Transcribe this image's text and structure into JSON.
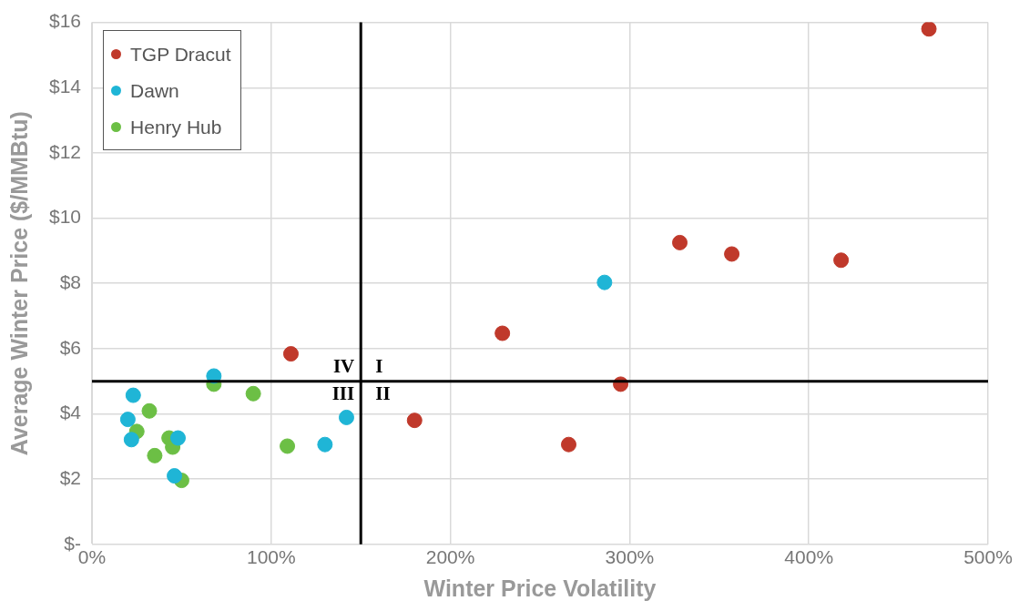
{
  "chart_data": {
    "type": "scatter",
    "xlabel": "Winter Price Volatility",
    "ylabel": "Average Winter Price ($/MMBtu)",
    "xlim": [
      0,
      500
    ],
    "xticks": [
      {
        "value": 0,
        "label": "0%"
      },
      {
        "value": 100,
        "label": "100%"
      },
      {
        "value": 200,
        "label": "200%"
      },
      {
        "value": 300,
        "label": "300%"
      },
      {
        "value": 400,
        "label": "400%"
      },
      {
        "value": 500,
        "label": "500%"
      }
    ],
    "ylim": [
      0,
      16
    ],
    "yticks": [
      {
        "value": 0,
        "label": "$-"
      },
      {
        "value": 2,
        "label": "$2"
      },
      {
        "value": 4,
        "label": "$4"
      },
      {
        "value": 6,
        "label": "$6"
      },
      {
        "value": 8,
        "label": "$8"
      },
      {
        "value": 10,
        "label": "$10"
      },
      {
        "value": 12,
        "label": "$12"
      },
      {
        "value": 14,
        "label": "$14"
      },
      {
        "value": 16,
        "label": "$16"
      }
    ],
    "grid": true,
    "legend": "top left",
    "marker": "circle",
    "series": [
      {
        "name": "TGP Dracut",
        "color": "#c0392b",
        "x": [
          467,
          111,
          229,
          328,
          357,
          418,
          295,
          180,
          266
        ],
        "values": [
          15.8,
          5.84,
          6.47,
          9.25,
          8.9,
          8.71,
          4.91,
          3.8,
          3.06
        ]
      },
      {
        "name": "Dawn",
        "color": "#1fb5d6",
        "x": [
          286,
          68,
          23,
          20,
          22,
          48,
          46,
          142,
          130
        ],
        "values": [
          8.03,
          5.16,
          4.57,
          3.83,
          3.21,
          3.26,
          2.1,
          3.89,
          3.06
        ]
      },
      {
        "name": "Henry Hub",
        "color": "#6cbf45",
        "x": [
          68,
          90,
          32,
          25,
          43,
          45,
          35,
          50,
          109
        ],
        "values": [
          4.91,
          4.62,
          4.09,
          3.46,
          3.26,
          2.98,
          2.72,
          1.96,
          3.01
        ]
      }
    ],
    "ref_lines": [
      {
        "axis": "x",
        "value": 150,
        "color": "#000000"
      },
      {
        "axis": "y",
        "value": 5,
        "color": "#000000"
      }
    ],
    "annotations": [
      "IV",
      "I",
      "III",
      "II"
    ]
  }
}
